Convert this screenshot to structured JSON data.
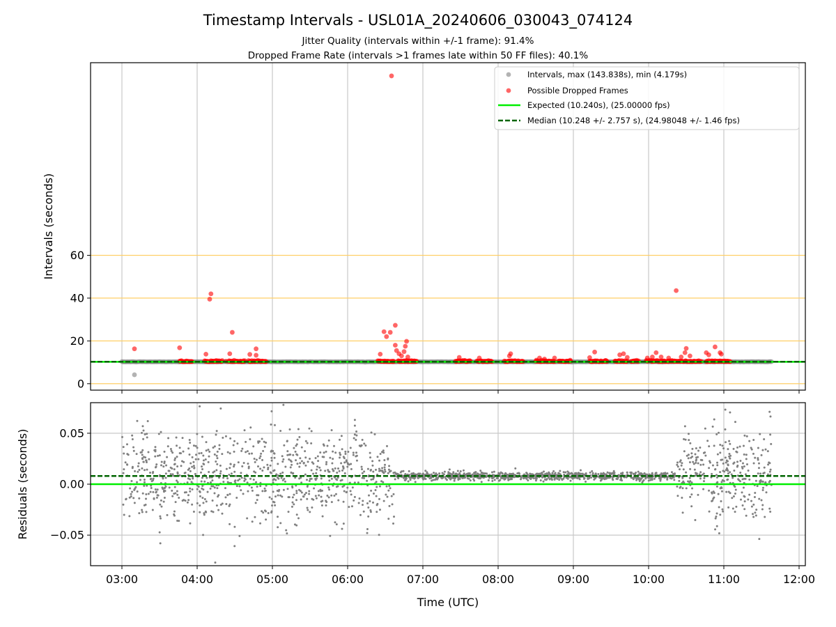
{
  "figure": {
    "title": "Timestamp Intervals - USL01A_20240606_030043_074124",
    "subtitle_1": "Jitter Quality (intervals within +/-1 frame): 91.4%",
    "subtitle_2": "Dropped Frame Rate (intervals >1 frames late within 50 FF files): 40.1%"
  },
  "chart_data": [
    {
      "type": "scatter",
      "panel": "intervals",
      "ylabel": "Intervals (seconds)",
      "xlabel": "",
      "xlim": [
        "02:35",
        "12:05"
      ],
      "ylim": [
        -3,
        150
      ],
      "yticks": [
        0,
        20,
        40,
        60
      ],
      "xticks": [
        "03:00",
        "04:00",
        "05:00",
        "06:00",
        "07:00",
        "08:00",
        "09:00",
        "10:00",
        "11:00",
        "12:00"
      ],
      "grid": "vertical gray at x ticks; horizontal orange at 0, 20, 40, 60",
      "legend_position": "top-right",
      "legend": [
        "Intervals, max (143.838s), min (4.179s)",
        "Possible Dropped Frames",
        "Expected (10.240s), (25.00000 fps)",
        "Median (10.248 +/- 2.757 s), (24.98048 +/- 1.46 fps)"
      ],
      "series": [
        {
          "name": "Intervals, max (143.838s), min (4.179s)",
          "color": "#808080",
          "x_range": [
            "03:00",
            "11:38"
          ],
          "typical_y": 10.24,
          "outliers": [
            {
              "x": "03:10",
              "y": 4.179
            }
          ]
        },
        {
          "name": "Possible Dropped Frames",
          "color": "#ff0000",
          "clusters": [
            [
              "03:46",
              "03:56"
            ],
            [
              "04:06",
              "04:20"
            ],
            [
              "04:25",
              "04:38"
            ],
            [
              "04:41",
              "04:55"
            ],
            [
              "06:24",
              "06:37"
            ],
            [
              "06:40",
              "06:55"
            ],
            [
              "07:26",
              "07:38"
            ],
            [
              "07:43",
              "07:55"
            ],
            [
              "08:05",
              "08:20"
            ],
            [
              "08:30",
              "08:45"
            ],
            [
              "08:48",
              "08:58"
            ],
            [
              "09:13",
              "09:27"
            ],
            [
              "09:33",
              "09:43"
            ],
            [
              "09:46",
              "09:52"
            ],
            [
              "09:58",
              "10:03"
            ],
            [
              "10:03",
              "10:42"
            ],
            [
              "10:46",
              "11:05"
            ]
          ],
          "outliers": [
            {
              "x": "03:10",
              "y": 16.3
            },
            {
              "x": "03:46",
              "y": 16.8
            },
            {
              "x": "04:07",
              "y": 13.8
            },
            {
              "x": "04:10",
              "y": 39.5
            },
            {
              "x": "04:11",
              "y": 42
            },
            {
              "x": "04:23",
              "y": 10.5
            },
            {
              "x": "04:26",
              "y": 14
            },
            {
              "x": "04:28",
              "y": 24
            },
            {
              "x": "04:42",
              "y": 13.7
            },
            {
              "x": "04:47",
              "y": 16.3
            },
            {
              "x": "04:47",
              "y": 13.3
            },
            {
              "x": "06:26",
              "y": 13.8
            },
            {
              "x": "06:29",
              "y": 24.3
            },
            {
              "x": "06:31",
              "y": 22
            },
            {
              "x": "06:34",
              "y": 24
            },
            {
              "x": "06:35",
              "y": 143.838
            },
            {
              "x": "06:38",
              "y": 27.3
            },
            {
              "x": "06:38",
              "y": 18
            },
            {
              "x": "06:39",
              "y": 15.5
            },
            {
              "x": "06:41",
              "y": 14
            },
            {
              "x": "06:43",
              "y": 13
            },
            {
              "x": "06:45",
              "y": 15
            },
            {
              "x": "06:46",
              "y": 17.5
            },
            {
              "x": "06:47",
              "y": 19.8
            },
            {
              "x": "06:48",
              "y": 12.5
            },
            {
              "x": "07:29",
              "y": 12.3
            },
            {
              "x": "07:45",
              "y": 12
            },
            {
              "x": "08:09",
              "y": 13
            },
            {
              "x": "08:10",
              "y": 14
            },
            {
              "x": "08:33",
              "y": 12
            },
            {
              "x": "08:37",
              "y": 11.5
            },
            {
              "x": "08:45",
              "y": 12
            },
            {
              "x": "09:13",
              "y": 12.2
            },
            {
              "x": "09:17",
              "y": 14.8
            },
            {
              "x": "09:37",
              "y": 13.5
            },
            {
              "x": "09:40",
              "y": 14
            },
            {
              "x": "09:43",
              "y": 12.3
            },
            {
              "x": "09:59",
              "y": 12
            },
            {
              "x": "10:03",
              "y": 12.5
            },
            {
              "x": "10:06",
              "y": 14.5
            },
            {
              "x": "10:10",
              "y": 12.5
            },
            {
              "x": "10:16",
              "y": 12
            },
            {
              "x": "10:22",
              "y": 43.5
            },
            {
              "x": "10:26",
              "y": 12.5
            },
            {
              "x": "10:29",
              "y": 14.5
            },
            {
              "x": "10:30",
              "y": 16.5
            },
            {
              "x": "10:33",
              "y": 13
            },
            {
              "x": "10:46",
              "y": 14.5
            },
            {
              "x": "10:48",
              "y": 13.5
            },
            {
              "x": "10:53",
              "y": 17.2
            },
            {
              "x": "10:57",
              "y": 14.5
            },
            {
              "x": "10:58",
              "y": 13.8
            }
          ]
        },
        {
          "name": "Expected (10.240s), (25.00000 fps)",
          "color": "#00ee00",
          "y": 10.24
        },
        {
          "name": "Median (10.248 +/- 2.757 s), (24.98048 +/- 1.46 fps)",
          "color": "#006400",
          "y": 10.248
        }
      ]
    },
    {
      "type": "scatter",
      "panel": "residuals",
      "ylabel": "Residuals (seconds)",
      "xlabel": "Time (UTC)",
      "xlim": [
        "02:35",
        "12:05"
      ],
      "ylim": [
        -0.08,
        0.08
      ],
      "yticks": [
        0.05,
        0.0,
        -0.05
      ],
      "ytick_labels": [
        "0.05",
        "0.00",
        "−0.05"
      ],
      "xticks": [
        "03:00",
        "04:00",
        "05:00",
        "06:00",
        "07:00",
        "08:00",
        "09:00",
        "10:00",
        "11:00",
        "12:00"
      ],
      "grid": "on",
      "series": [
        {
          "name": "",
          "color": "#808080",
          "segments": [
            {
              "x_range": [
                "03:00",
                "06:37"
              ],
              "center": 0.008,
              "spread": 0.022
            },
            {
              "x_range": [
                "06:37",
                "10:22"
              ],
              "center": 0.008,
              "spread": 0.002
            },
            {
              "x_range": [
                "10:22",
                "11:38"
              ],
              "center": 0.01,
              "spread": 0.022
            }
          ]
        },
        {
          "name": "",
          "color": "#00ee00",
          "y": 0.0
        },
        {
          "name": "",
          "color": "#006400",
          "y": 0.008
        }
      ]
    }
  ]
}
